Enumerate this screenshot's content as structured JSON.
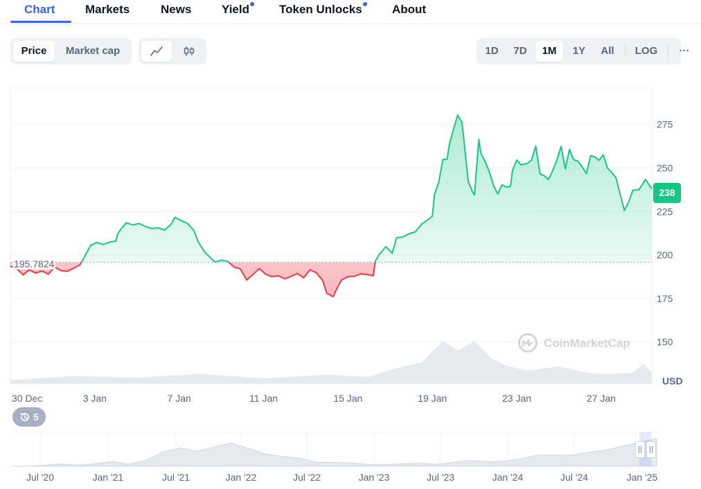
{
  "tabs": [
    {
      "label": "Chart",
      "active": true,
      "dot": false
    },
    {
      "label": "Markets",
      "active": false,
      "dot": false
    },
    {
      "label": "News",
      "active": false,
      "dot": false
    },
    {
      "label": "Yield",
      "active": false,
      "dot": true
    },
    {
      "label": "Token Unlocks",
      "active": false,
      "dot": true
    },
    {
      "label": "About",
      "active": false,
      "dot": false
    }
  ],
  "toggles": {
    "metric": {
      "options": [
        "Price",
        "Market cap"
      ],
      "selected": "Price"
    },
    "chart_style": {
      "options": [
        "line-chart-icon",
        "candlestick-icon"
      ],
      "selected": "line-chart-icon"
    },
    "ranges": {
      "options": [
        "1D",
        "7D",
        "1M",
        "1Y",
        "All"
      ],
      "selected": "1M"
    },
    "log_label": "LOG",
    "more_label": "···"
  },
  "price_badge": "238",
  "reference_label": "195.7824",
  "currency": "USD",
  "watermark": "CoinMarketCap",
  "history_count": "5",
  "colors": {
    "up": "#16c784",
    "down": "#ea3943",
    "accent": "#3861fb",
    "grid": "#eff2f5",
    "text": "#58667e"
  },
  "chart_data": {
    "type": "line",
    "title": "",
    "xlabel": "",
    "ylabel": "USD",
    "x_ticks": [
      "30 Dec",
      "3 Jan",
      "7 Jan",
      "11 Jan",
      "15 Jan",
      "19 Jan",
      "23 Jan",
      "27 Jan"
    ],
    "y_ticks": [
      150,
      175,
      200,
      225,
      250,
      275
    ],
    "ylim": [
      126,
      296
    ],
    "baseline": 195.7824,
    "last_price": 238,
    "grid": true,
    "price_series": [
      {
        "t": 0.0,
        "v": 193.5
      },
      {
        "t": 0.3,
        "v": 192.2
      },
      {
        "t": 0.6,
        "v": 188.6
      },
      {
        "t": 0.9,
        "v": 191.4
      },
      {
        "t": 1.2,
        "v": 189.6
      },
      {
        "t": 1.5,
        "v": 190.8
      },
      {
        "t": 1.8,
        "v": 189.0
      },
      {
        "t": 2.1,
        "v": 193.0
      },
      {
        "t": 2.4,
        "v": 191.0
      },
      {
        "t": 2.7,
        "v": 190.6
      },
      {
        "t": 3.0,
        "v": 192.4
      },
      {
        "t": 3.3,
        "v": 194.4
      },
      {
        "t": 3.5,
        "v": 198.6
      },
      {
        "t": 3.8,
        "v": 205.5
      },
      {
        "t": 4.1,
        "v": 207.2
      },
      {
        "t": 4.4,
        "v": 206.0
      },
      {
        "t": 4.7,
        "v": 207.4
      },
      {
        "t": 5.0,
        "v": 208.0
      },
      {
        "t": 5.1,
        "v": 212.4
      },
      {
        "t": 5.3,
        "v": 215.8
      },
      {
        "t": 5.5,
        "v": 218.5
      },
      {
        "t": 5.8,
        "v": 217.3
      },
      {
        "t": 6.1,
        "v": 218.1
      },
      {
        "t": 6.4,
        "v": 216.4
      },
      {
        "t": 6.7,
        "v": 215.2
      },
      {
        "t": 7.0,
        "v": 215.6
      },
      {
        "t": 7.3,
        "v": 214.4
      },
      {
        "t": 7.6,
        "v": 217.3
      },
      {
        "t": 7.8,
        "v": 221.7
      },
      {
        "t": 8.1,
        "v": 219.7
      },
      {
        "t": 8.4,
        "v": 218.1
      },
      {
        "t": 8.7,
        "v": 214.0
      },
      {
        "t": 8.9,
        "v": 207.6
      },
      {
        "t": 9.2,
        "v": 201.9
      },
      {
        "t": 9.5,
        "v": 198.2
      },
      {
        "t": 9.7,
        "v": 196.0
      },
      {
        "t": 10.0,
        "v": 197.0
      },
      {
        "t": 10.3,
        "v": 196.4
      },
      {
        "t": 10.6,
        "v": 193.1
      },
      {
        "t": 10.9,
        "v": 192.0
      },
      {
        "t": 11.2,
        "v": 185.6
      },
      {
        "t": 11.5,
        "v": 188.8
      },
      {
        "t": 11.8,
        "v": 192.2
      },
      {
        "t": 12.1,
        "v": 189.0
      },
      {
        "t": 12.4,
        "v": 187.5
      },
      {
        "t": 12.7,
        "v": 188.1
      },
      {
        "t": 13.0,
        "v": 186.3
      },
      {
        "t": 13.3,
        "v": 187.7
      },
      {
        "t": 13.6,
        "v": 189.4
      },
      {
        "t": 13.9,
        "v": 186.9
      },
      {
        "t": 14.2,
        "v": 191.5
      },
      {
        "t": 14.5,
        "v": 189.8
      },
      {
        "t": 14.8,
        "v": 185.4
      },
      {
        "t": 15.0,
        "v": 178.0
      },
      {
        "t": 15.3,
        "v": 176.0
      },
      {
        "t": 15.5,
        "v": 181.3
      },
      {
        "t": 15.7,
        "v": 185.6
      },
      {
        "t": 16.0,
        "v": 187.5
      },
      {
        "t": 16.3,
        "v": 187.7
      },
      {
        "t": 16.6,
        "v": 189.2
      },
      {
        "t": 16.9,
        "v": 188.8
      },
      {
        "t": 17.2,
        "v": 188.1
      },
      {
        "t": 17.3,
        "v": 196.6
      },
      {
        "t": 17.5,
        "v": 200.6
      },
      {
        "t": 17.8,
        "v": 204.8
      },
      {
        "t": 18.1,
        "v": 201.0
      },
      {
        "t": 18.3,
        "v": 209.8
      },
      {
        "t": 18.6,
        "v": 210.4
      },
      {
        "t": 18.9,
        "v": 212.2
      },
      {
        "t": 19.2,
        "v": 213.3
      },
      {
        "t": 19.5,
        "v": 217.9
      },
      {
        "t": 19.8,
        "v": 220.3
      },
      {
        "t": 20.0,
        "v": 222.3
      },
      {
        "t": 20.1,
        "v": 234.9
      },
      {
        "t": 20.3,
        "v": 241.5
      },
      {
        "t": 20.5,
        "v": 254.9
      },
      {
        "t": 20.7,
        "v": 255.1
      },
      {
        "t": 20.8,
        "v": 263.2
      },
      {
        "t": 21.0,
        "v": 272.3
      },
      {
        "t": 21.2,
        "v": 280.4
      },
      {
        "t": 21.4,
        "v": 276.3
      },
      {
        "t": 21.5,
        "v": 265.4
      },
      {
        "t": 21.7,
        "v": 242.3
      },
      {
        "t": 21.9,
        "v": 236.3
      },
      {
        "t": 22.0,
        "v": 234.5
      },
      {
        "t": 22.2,
        "v": 266.4
      },
      {
        "t": 22.3,
        "v": 258.4
      },
      {
        "t": 22.5,
        "v": 253.7
      },
      {
        "t": 22.7,
        "v": 247.7
      },
      {
        "t": 22.9,
        "v": 239.9
      },
      {
        "t": 23.1,
        "v": 235.1
      },
      {
        "t": 23.3,
        "v": 240.3
      },
      {
        "t": 23.5,
        "v": 239.1
      },
      {
        "t": 23.7,
        "v": 239.4
      },
      {
        "t": 23.8,
        "v": 248.7
      },
      {
        "t": 24.0,
        "v": 254.6
      },
      {
        "t": 24.2,
        "v": 251.8
      },
      {
        "t": 24.5,
        "v": 252.6
      },
      {
        "t": 24.7,
        "v": 254.6
      },
      {
        "t": 24.9,
        "v": 262.6
      },
      {
        "t": 25.1,
        "v": 246.5
      },
      {
        "t": 25.3,
        "v": 245.6
      },
      {
        "t": 25.5,
        "v": 243.4
      },
      {
        "t": 25.7,
        "v": 248.3
      },
      {
        "t": 25.9,
        "v": 254.4
      },
      {
        "t": 26.1,
        "v": 262.4
      },
      {
        "t": 26.3,
        "v": 249.5
      },
      {
        "t": 26.5,
        "v": 260.7
      },
      {
        "t": 26.7,
        "v": 254.7
      },
      {
        "t": 26.9,
        "v": 253.9
      },
      {
        "t": 27.1,
        "v": 250.6
      },
      {
        "t": 27.3,
        "v": 246.8
      },
      {
        "t": 27.5,
        "v": 257.1
      },
      {
        "t": 27.7,
        "v": 256.4
      },
      {
        "t": 27.9,
        "v": 254.4
      },
      {
        "t": 28.1,
        "v": 257.6
      },
      {
        "t": 28.3,
        "v": 249.9
      },
      {
        "t": 28.5,
        "v": 247.5
      },
      {
        "t": 28.7,
        "v": 244.5
      },
      {
        "t": 28.9,
        "v": 234.9
      },
      {
        "t": 29.1,
        "v": 225.6
      },
      {
        "t": 29.3,
        "v": 230.4
      },
      {
        "t": 29.5,
        "v": 237.1
      },
      {
        "t": 29.8,
        "v": 237.7
      },
      {
        "t": 30.1,
        "v": 243.4
      },
      {
        "t": 30.4,
        "v": 238.0
      }
    ],
    "volume_series": [
      {
        "t": 0,
        "v": 0.12
      },
      {
        "t": 3,
        "v": 0.15
      },
      {
        "t": 6,
        "v": 0.18
      },
      {
        "t": 9,
        "v": 0.2
      },
      {
        "t": 12,
        "v": 0.16
      },
      {
        "t": 15,
        "v": 0.18
      },
      {
        "t": 17,
        "v": 0.2
      },
      {
        "t": 18,
        "v": 0.3
      },
      {
        "t": 19.5,
        "v": 0.55
      },
      {
        "t": 20.5,
        "v": 1.0
      },
      {
        "t": 21.2,
        "v": 0.85
      },
      {
        "t": 22.0,
        "v": 1.0
      },
      {
        "t": 22.8,
        "v": 0.65
      },
      {
        "t": 23.5,
        "v": 0.4
      },
      {
        "t": 24.5,
        "v": 0.35
      },
      {
        "t": 26.0,
        "v": 0.38
      },
      {
        "t": 27.5,
        "v": 0.28
      },
      {
        "t": 28.5,
        "v": 0.2
      },
      {
        "t": 29.5,
        "v": 0.3
      },
      {
        "t": 30.0,
        "v": 0.45
      },
      {
        "t": 30.4,
        "v": 0.3
      }
    ],
    "overview_ticks": [
      "Jul '20",
      "Jan '21",
      "Jul '21",
      "Jan '22",
      "Jul '22",
      "Jan '23",
      "Jul '23",
      "Jan '24",
      "Jul '24",
      "Jan '25"
    ],
    "overview_series": [
      0.01,
      0.01,
      0.02,
      0.03,
      0.05,
      0.08,
      0.12,
      0.1,
      0.2,
      0.45,
      0.55,
      0.5,
      0.62,
      0.72,
      0.6,
      0.4,
      0.3,
      0.22,
      0.15,
      0.12,
      0.08,
      0.09,
      0.06,
      0.06,
      0.06,
      0.08,
      0.12,
      0.16,
      0.18,
      0.17,
      0.22,
      0.32,
      0.38,
      0.35,
      0.42,
      0.55,
      0.65,
      0.75,
      0.85
    ]
  }
}
